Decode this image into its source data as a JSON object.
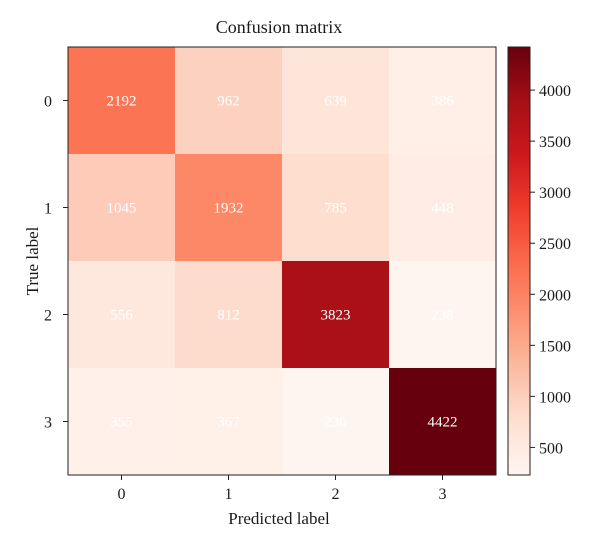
{
  "chart_data": {
    "type": "heatmap",
    "title": "Confusion matrix",
    "xlabel": "Predicted label",
    "ylabel": "True label",
    "x_categories": [
      "0",
      "1",
      "2",
      "3"
    ],
    "y_categories": [
      "0",
      "1",
      "2",
      "3"
    ],
    "values": [
      [
        2192,
        962,
        639,
        386
      ],
      [
        1045,
        1932,
        785,
        448
      ],
      [
        556,
        812,
        3823,
        238
      ],
      [
        355,
        367,
        230,
        4422
      ]
    ],
    "colorbar": {
      "colormap": "Reds",
      "range": [
        230,
        4422
      ],
      "ticks": [
        "500",
        "1000",
        "1500",
        "2000",
        "2500",
        "3000",
        "3500",
        "4000"
      ]
    },
    "cell_text_color": "#ffffff",
    "grid": false
  }
}
